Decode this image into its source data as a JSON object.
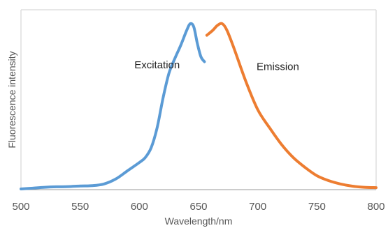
{
  "chart_data": {
    "type": "line",
    "title": "",
    "xlabel": "Wavelength/nm",
    "ylabel": "Fluorescence intensity",
    "xlim": [
      500,
      800
    ],
    "ylim": [
      0,
      1
    ],
    "xticks": [
      500,
      550,
      600,
      650,
      700,
      750,
      800
    ],
    "xtick_labels": [
      "500",
      "550",
      "600",
      "650",
      "700",
      "750",
      "800"
    ],
    "grid": false,
    "legend": "none",
    "series": [
      {
        "color": "#5b9bd5",
        "points": [
          [
            500,
            0.0
          ],
          [
            510,
            0.005
          ],
          [
            520,
            0.01
          ],
          [
            530,
            0.013
          ],
          [
            540,
            0.014
          ],
          [
            550,
            0.018
          ],
          [
            560,
            0.02
          ],
          [
            570,
            0.03
          ],
          [
            580,
            0.06
          ],
          [
            590,
            0.11
          ],
          [
            600,
            0.16
          ],
          [
            605,
            0.19
          ],
          [
            610,
            0.25
          ],
          [
            615,
            0.37
          ],
          [
            620,
            0.55
          ],
          [
            625,
            0.7
          ],
          [
            630,
            0.79
          ],
          [
            635,
            0.87
          ],
          [
            640,
            0.96
          ],
          [
            643,
            1.0
          ],
          [
            646,
            0.98
          ],
          [
            649,
            0.88
          ],
          [
            652,
            0.8
          ],
          [
            655,
            0.77
          ]
        ]
      },
      {
        "color": "#ed7d31",
        "points": [
          [
            657,
            0.93
          ],
          [
            662,
            0.96
          ],
          [
            666,
            0.99
          ],
          [
            670,
            1.0
          ],
          [
            674,
            0.96
          ],
          [
            680,
            0.85
          ],
          [
            690,
            0.65
          ],
          [
            700,
            0.48
          ],
          [
            710,
            0.37
          ],
          [
            720,
            0.27
          ],
          [
            730,
            0.19
          ],
          [
            740,
            0.13
          ],
          [
            750,
            0.08
          ],
          [
            760,
            0.05
          ],
          [
            770,
            0.03
          ],
          [
            780,
            0.017
          ],
          [
            790,
            0.01
          ],
          [
            800,
            0.008
          ]
        ]
      }
    ],
    "annotations": [
      {
        "text": "Excitation",
        "x": 615,
        "y": 0.73
      },
      {
        "text": "Emission",
        "x": 717,
        "y": 0.72
      }
    ]
  }
}
